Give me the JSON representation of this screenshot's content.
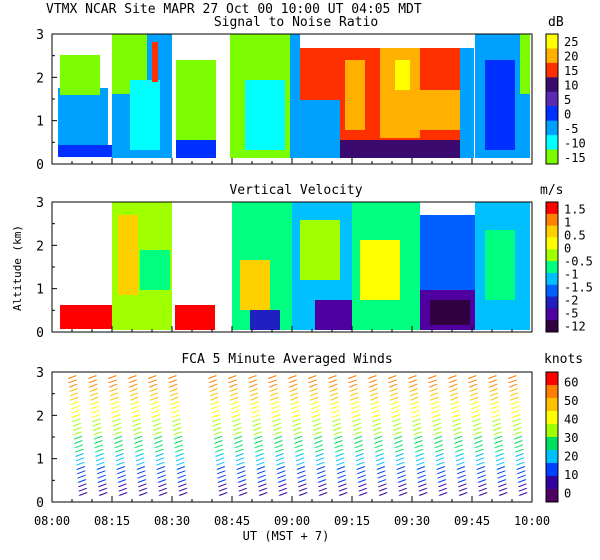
{
  "header": {
    "site_line": "VTMX  NCAR Site  MAPR 27 Oct 00  10:00 UT  04:05  MDT"
  },
  "chart_data": [
    {
      "type": "heatmap",
      "title": "Signal to Noise Ratio",
      "unit": "dB",
      "ylim": [
        0,
        3
      ],
      "yticks": [
        "0",
        "1",
        "2",
        "3"
      ],
      "colorbar": {
        "labels": [
          "25",
          "20",
          "15",
          "10",
          "5",
          "0",
          "-5",
          "-10",
          "-15"
        ],
        "colors": [
          "#ffff00",
          "#ffb000",
          "#ff3000",
          "#3a0a6e",
          "#5a2ab0",
          "#0030ff",
          "#00a0ff",
          "#00ffff",
          "#7cfc00"
        ]
      }
    },
    {
      "type": "heatmap",
      "title": "Vertical Velocity",
      "unit": "m/s",
      "ylabel": "Altitude (km)",
      "ylim": [
        0,
        3
      ],
      "yticks": [
        "0",
        "1",
        "2",
        "3"
      ],
      "colorbar": {
        "labels": [
          "1.5",
          "1",
          "0.5",
          "0",
          "-0.5",
          "-1",
          "-1.5",
          "-2",
          "-5",
          "-12"
        ],
        "colors": [
          "#ff0000",
          "#ff8000",
          "#ffd000",
          "#ffff00",
          "#a0ff00",
          "#00ff80",
          "#00c0ff",
          "#0060ff",
          "#2020c0",
          "#5000a0",
          "#300040"
        ]
      }
    },
    {
      "type": "scatter",
      "title": "FCA 5 Minute Averaged Winds",
      "unit": "knots",
      "xlabel": "UT  (MST + 7)",
      "ylim": [
        0,
        3
      ],
      "yticks": [
        "0",
        "1",
        "2",
        "3"
      ],
      "xticks": [
        "08:00",
        "08:15",
        "08:30",
        "08:45",
        "09:00",
        "09:15",
        "09:30",
        "09:45",
        "10:00"
      ],
      "colorbar": {
        "labels": [
          "60",
          "50",
          "40",
          "30",
          "20",
          "10",
          "0"
        ],
        "colors": [
          "#ff0000",
          "#ff8000",
          "#ffc000",
          "#ffff00",
          "#a0ff00",
          "#00e060",
          "#00c0ff",
          "#0040ff",
          "#3000a0",
          "#500060"
        ]
      },
      "series": [
        {
          "name": "barb columns (UT)",
          "values": [
            "08:05",
            "08:10",
            "08:15",
            "08:20",
            "08:25",
            "08:30",
            "08:40",
            "08:45",
            "08:50",
            "08:55",
            "09:00",
            "09:05",
            "09:10",
            "09:15",
            "09:20",
            "09:25",
            "09:30",
            "09:35",
            "09:40",
            "09:45",
            "09:50",
            "09:55"
          ]
        }
      ]
    }
  ]
}
